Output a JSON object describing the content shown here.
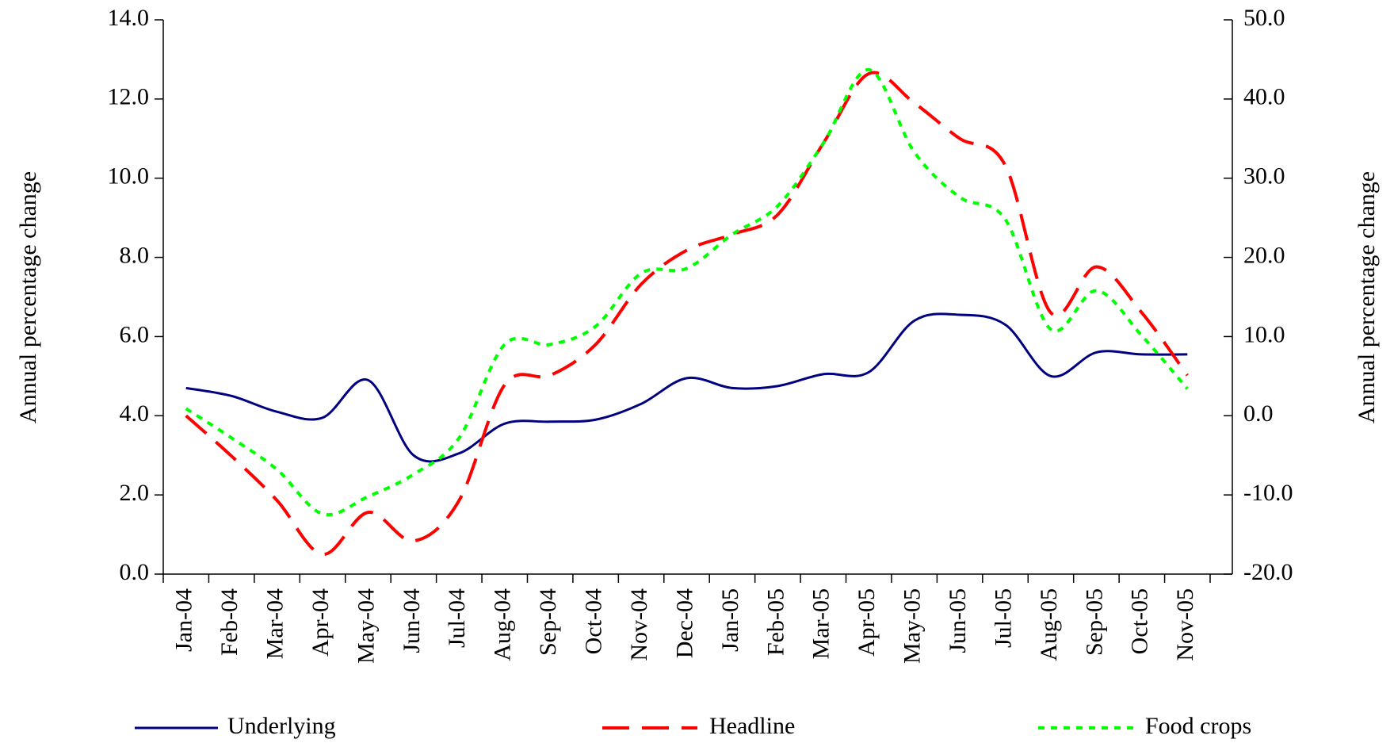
{
  "chart_data": {
    "type": "line",
    "categories": [
      "Jan-04",
      "Feb-04",
      "Mar-04",
      "Apr-04",
      "May-04",
      "Jun-04",
      "Jul-04",
      "Aug-04",
      "Sep-04",
      "Oct-04",
      "Nov-04",
      "Dec-04",
      "Jan-05",
      "Feb-05",
      "Mar-05",
      "Apr-05",
      "May-05",
      "Jun-05",
      "Jul-05",
      "Aug-05",
      "Sep-05",
      "Oct-05",
      "Nov-05"
    ],
    "ylabel": "Annual percentage change",
    "y2label": "Annual percentage change",
    "ylim": [
      0,
      14
    ],
    "yticks": [
      {
        "value": 0,
        "label": "0.0"
      },
      {
        "value": 2,
        "label": "2.0"
      },
      {
        "value": 4,
        "label": "4.0"
      },
      {
        "value": 6,
        "label": "6.0"
      },
      {
        "value": 8,
        "label": "8.0"
      },
      {
        "value": 10,
        "label": "10.0"
      },
      {
        "value": 12,
        "label": "12.0"
      },
      {
        "value": 14,
        "label": "14.0"
      }
    ],
    "y2lim": [
      -20,
      50
    ],
    "y2ticks": [
      {
        "value": -20,
        "label": "-20.0"
      },
      {
        "value": -10,
        "label": "-10.0"
      },
      {
        "value": 0,
        "label": "0.0"
      },
      {
        "value": 10,
        "label": "10.0"
      },
      {
        "value": 20,
        "label": "20.0"
      },
      {
        "value": 30,
        "label": "30.0"
      },
      {
        "value": 40,
        "label": "40.0"
      },
      {
        "value": 50,
        "label": "50.0"
      }
    ],
    "grid": false,
    "legend": "bottom",
    "series": [
      {
        "name": "Underlying",
        "color": "#000080",
        "style": "solid",
        "axis": "y",
        "values": [
          4.7,
          4.5,
          4.1,
          3.95,
          4.9,
          3.0,
          3.05,
          3.8,
          3.85,
          3.9,
          4.3,
          4.95,
          4.7,
          4.75,
          5.05,
          5.1,
          6.4,
          6.55,
          6.3,
          5.0,
          5.6,
          5.55,
          5.55
        ]
      },
      {
        "name": "Headline",
        "color": "#ff0000",
        "style": "dashed",
        "axis": "y2",
        "values": [
          0.0,
          -5.1,
          -10.7,
          -17.5,
          -12.2,
          -15.8,
          -10.7,
          3.9,
          5.1,
          9.0,
          16.6,
          20.9,
          22.9,
          25.4,
          34.4,
          43.2,
          39.5,
          35.0,
          31.6,
          13.0,
          18.8,
          13.0,
          5.1
        ]
      },
      {
        "name": "Food crops",
        "color": "#00ff00",
        "style": "dotted",
        "axis": "y2",
        "values": [
          0.9,
          -2.8,
          -6.8,
          -12.4,
          -10.2,
          -7.4,
          -2.8,
          9.0,
          9.0,
          11.3,
          18.0,
          18.6,
          22.9,
          26.5,
          34.4,
          43.7,
          33.3,
          27.6,
          24.8,
          10.9,
          15.8,
          10.1,
          3.4
        ]
      }
    ]
  }
}
